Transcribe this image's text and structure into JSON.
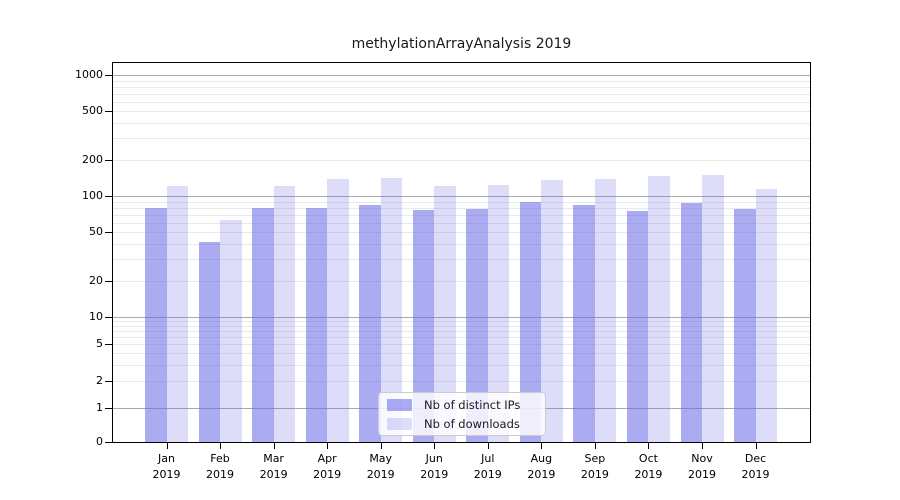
{
  "chart_data": {
    "type": "bar",
    "title": "methylationArrayAnalysis 2019",
    "categories": [
      "Jan",
      "Feb",
      "Mar",
      "Apr",
      "May",
      "Jun",
      "Jul",
      "Aug",
      "Sep",
      "Oct",
      "Nov",
      "Dec"
    ],
    "year": "2019",
    "series": [
      {
        "name": "Nb of distinct IPs",
        "color": "rgba(102,102,230,0.55)",
        "values": [
          79,
          42,
          80,
          80,
          84,
          76,
          78,
          90,
          85,
          75,
          88,
          78
        ]
      },
      {
        "name": "Nb of downloads",
        "color": "rgba(102,102,230,0.22)",
        "values": [
          121,
          63,
          121,
          138,
          140,
          121,
          123,
          135,
          137,
          147,
          150,
          114
        ]
      }
    ],
    "yticks": [
      0,
      1,
      2,
      5,
      10,
      20,
      50,
      100,
      200,
      500,
      1000
    ],
    "xlabel": "",
    "ylabel": "",
    "ylim": [
      0,
      1300
    ],
    "yscale": "pseudo-log",
    "grid": true,
    "legend_position": "bottom-center"
  },
  "colors": {
    "bar_base": "#6666e6",
    "grid_major": "#aaaaaa",
    "grid_minor": "#e9e9e9",
    "spine": "#000000",
    "legend_border": "#cccccc",
    "background": "#ffffff"
  }
}
